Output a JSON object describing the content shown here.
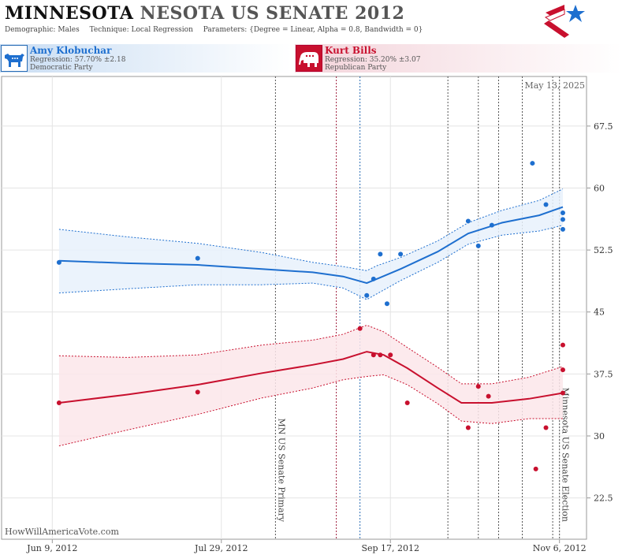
{
  "header": {
    "title_state": "MINNESOTA",
    "title_rest": "NESOTA US SENATE 2012",
    "demographic_label": "Demographic:",
    "demographic_value": "Males",
    "technique_label": "Technique:",
    "technique_value": "Local Regression",
    "parameters_label": "Parameters:",
    "parameters_value": "{Degree = Linear, Alpha = 0.8, Bandwidth = 0}"
  },
  "candidates": {
    "dem": {
      "name": "Amy Klobuchar",
      "regression": "Regression: 57.70% ±2.18",
      "party": "Democratic Party"
    },
    "rep": {
      "name": "Kurt Bills",
      "regression": "Regression: 35.20% ±3.07",
      "party": "Republican Party"
    }
  },
  "colors": {
    "dem": "#1e6fcf",
    "rep": "#c8102e",
    "dem_band": "#e8f1fb",
    "rep_band": "#fbe6ea"
  },
  "watermark": "HowWillAmericaVote.com",
  "date_label": "May 13, 2025",
  "chart_data": {
    "type": "line",
    "x_tick_labels": [
      "Jun 9, 2012",
      "Jul 29, 2012",
      "Sep 17, 2012",
      "Nov 6, 2012"
    ],
    "y_tick_labels": [
      "22.5",
      "30",
      "37.5",
      "45",
      "52.5",
      "60",
      "67.5"
    ],
    "y_ticks": [
      22.5,
      30,
      37.5,
      45,
      52.5,
      60,
      67.5
    ],
    "xlim": [
      "2012-05-25",
      "2012-11-14"
    ],
    "ylim": [
      17.5,
      73.5
    ],
    "grid": true,
    "events": [
      {
        "date": "2012-08-14",
        "label": "MN US Senate Primary",
        "style": "gray"
      },
      {
        "date": "2012-09-01",
        "label": "",
        "style": "red"
      },
      {
        "date": "2012-09-08",
        "label": "",
        "style": "blue"
      },
      {
        "date": "2012-10-04",
        "label": "",
        "style": "gray"
      },
      {
        "date": "2012-10-13",
        "label": "",
        "style": "gray"
      },
      {
        "date": "2012-10-19",
        "label": "",
        "style": "gray"
      },
      {
        "date": "2012-10-26",
        "label": "",
        "style": "gray"
      },
      {
        "date": "2012-11-04",
        "label": "",
        "style": "gray"
      },
      {
        "date": "2012-11-06",
        "label": "Minnesota US Senate Election",
        "style": "gray"
      }
    ],
    "series": [
      {
        "name": "Amy Klobuchar",
        "party": "dem",
        "points": [
          {
            "x": "2012-06-11",
            "y": 51
          },
          {
            "x": "2012-07-22",
            "y": 51.5
          },
          {
            "x": "2012-09-10",
            "y": 47
          },
          {
            "x": "2012-09-12",
            "y": 49
          },
          {
            "x": "2012-09-14",
            "y": 52
          },
          {
            "x": "2012-09-16",
            "y": 46
          },
          {
            "x": "2012-09-20",
            "y": 52
          },
          {
            "x": "2012-10-10",
            "y": 56
          },
          {
            "x": "2012-10-13",
            "y": 53
          },
          {
            "x": "2012-10-17",
            "y": 55.5
          },
          {
            "x": "2012-10-29",
            "y": 63
          },
          {
            "x": "2012-11-02",
            "y": 58
          },
          {
            "x": "2012-11-07",
            "y": 57
          },
          {
            "x": "2012-11-07",
            "y": 56.2
          },
          {
            "x": "2012-11-07",
            "y": 55
          }
        ],
        "fit": [
          {
            "x": "2012-06-11",
            "y": 51.2,
            "lo": 47.3,
            "hi": 55.0
          },
          {
            "x": "2012-07-01",
            "y": 50.9,
            "lo": 47.8,
            "hi": 54.1
          },
          {
            "x": "2012-07-22",
            "y": 50.7,
            "lo": 48.3,
            "hi": 53.3
          },
          {
            "x": "2012-08-10",
            "y": 50.2,
            "lo": 48.3,
            "hi": 52.2
          },
          {
            "x": "2012-08-25",
            "y": 49.8,
            "lo": 48.5,
            "hi": 51.0
          },
          {
            "x": "2012-09-03",
            "y": 49.3,
            "lo": 47.9,
            "hi": 50.5
          },
          {
            "x": "2012-09-10",
            "y": 48.5,
            "lo": 46.5,
            "hi": 50.0
          },
          {
            "x": "2012-09-13",
            "y": 49.0,
            "lo": 47.2,
            "hi": 50.6
          },
          {
            "x": "2012-09-20",
            "y": 50.2,
            "lo": 48.8,
            "hi": 51.6
          },
          {
            "x": "2012-10-01",
            "y": 52.3,
            "lo": 51.0,
            "hi": 53.6
          },
          {
            "x": "2012-10-10",
            "y": 54.5,
            "lo": 53.2,
            "hi": 55.8
          },
          {
            "x": "2012-10-20",
            "y": 55.8,
            "lo": 54.3,
            "hi": 57.3
          },
          {
            "x": "2012-10-31",
            "y": 56.7,
            "lo": 54.8,
            "hi": 58.5
          },
          {
            "x": "2012-11-07",
            "y": 57.7,
            "lo": 55.5,
            "hi": 59.9
          }
        ]
      },
      {
        "name": "Kurt Bills",
        "party": "rep",
        "points": [
          {
            "x": "2012-06-11",
            "y": 34
          },
          {
            "x": "2012-07-22",
            "y": 35.3
          },
          {
            "x": "2012-09-08",
            "y": 43
          },
          {
            "x": "2012-09-12",
            "y": 39.8
          },
          {
            "x": "2012-09-14",
            "y": 39.8
          },
          {
            "x": "2012-09-17",
            "y": 39.8
          },
          {
            "x": "2012-09-22",
            "y": 34
          },
          {
            "x": "2012-10-10",
            "y": 31
          },
          {
            "x": "2012-10-13",
            "y": 36
          },
          {
            "x": "2012-10-16",
            "y": 34.8
          },
          {
            "x": "2012-10-30",
            "y": 26
          },
          {
            "x": "2012-11-02",
            "y": 31
          },
          {
            "x": "2012-11-07",
            "y": 41
          },
          {
            "x": "2012-11-07",
            "y": 38
          },
          {
            "x": "2012-11-07",
            "y": 35.2
          }
        ],
        "fit": [
          {
            "x": "2012-06-11",
            "y": 34.0,
            "lo": 28.8,
            "hi": 39.7
          },
          {
            "x": "2012-07-01",
            "y": 35.0,
            "lo": 30.7,
            "hi": 39.5
          },
          {
            "x": "2012-07-22",
            "y": 36.2,
            "lo": 32.6,
            "hi": 39.8
          },
          {
            "x": "2012-08-10",
            "y": 37.6,
            "lo": 34.6,
            "hi": 41.0
          },
          {
            "x": "2012-08-25",
            "y": 38.6,
            "lo": 35.8,
            "hi": 41.6
          },
          {
            "x": "2012-09-03",
            "y": 39.3,
            "lo": 36.8,
            "hi": 42.3
          },
          {
            "x": "2012-09-10",
            "y": 40.2,
            "lo": 37.2,
            "hi": 43.4
          },
          {
            "x": "2012-09-15",
            "y": 39.8,
            "lo": 37.4,
            "hi": 42.6
          },
          {
            "x": "2012-09-22",
            "y": 38.2,
            "lo": 36.2,
            "hi": 40.7
          },
          {
            "x": "2012-10-01",
            "y": 35.8,
            "lo": 33.9,
            "hi": 38.3
          },
          {
            "x": "2012-10-08",
            "y": 34.0,
            "lo": 31.8,
            "hi": 36.3
          },
          {
            "x": "2012-10-17",
            "y": 34.0,
            "lo": 31.5,
            "hi": 36.3
          },
          {
            "x": "2012-10-28",
            "y": 34.5,
            "lo": 32.1,
            "hi": 37.1
          },
          {
            "x": "2012-11-07",
            "y": 35.2,
            "lo": 32.1,
            "hi": 38.4
          }
        ]
      }
    ]
  }
}
